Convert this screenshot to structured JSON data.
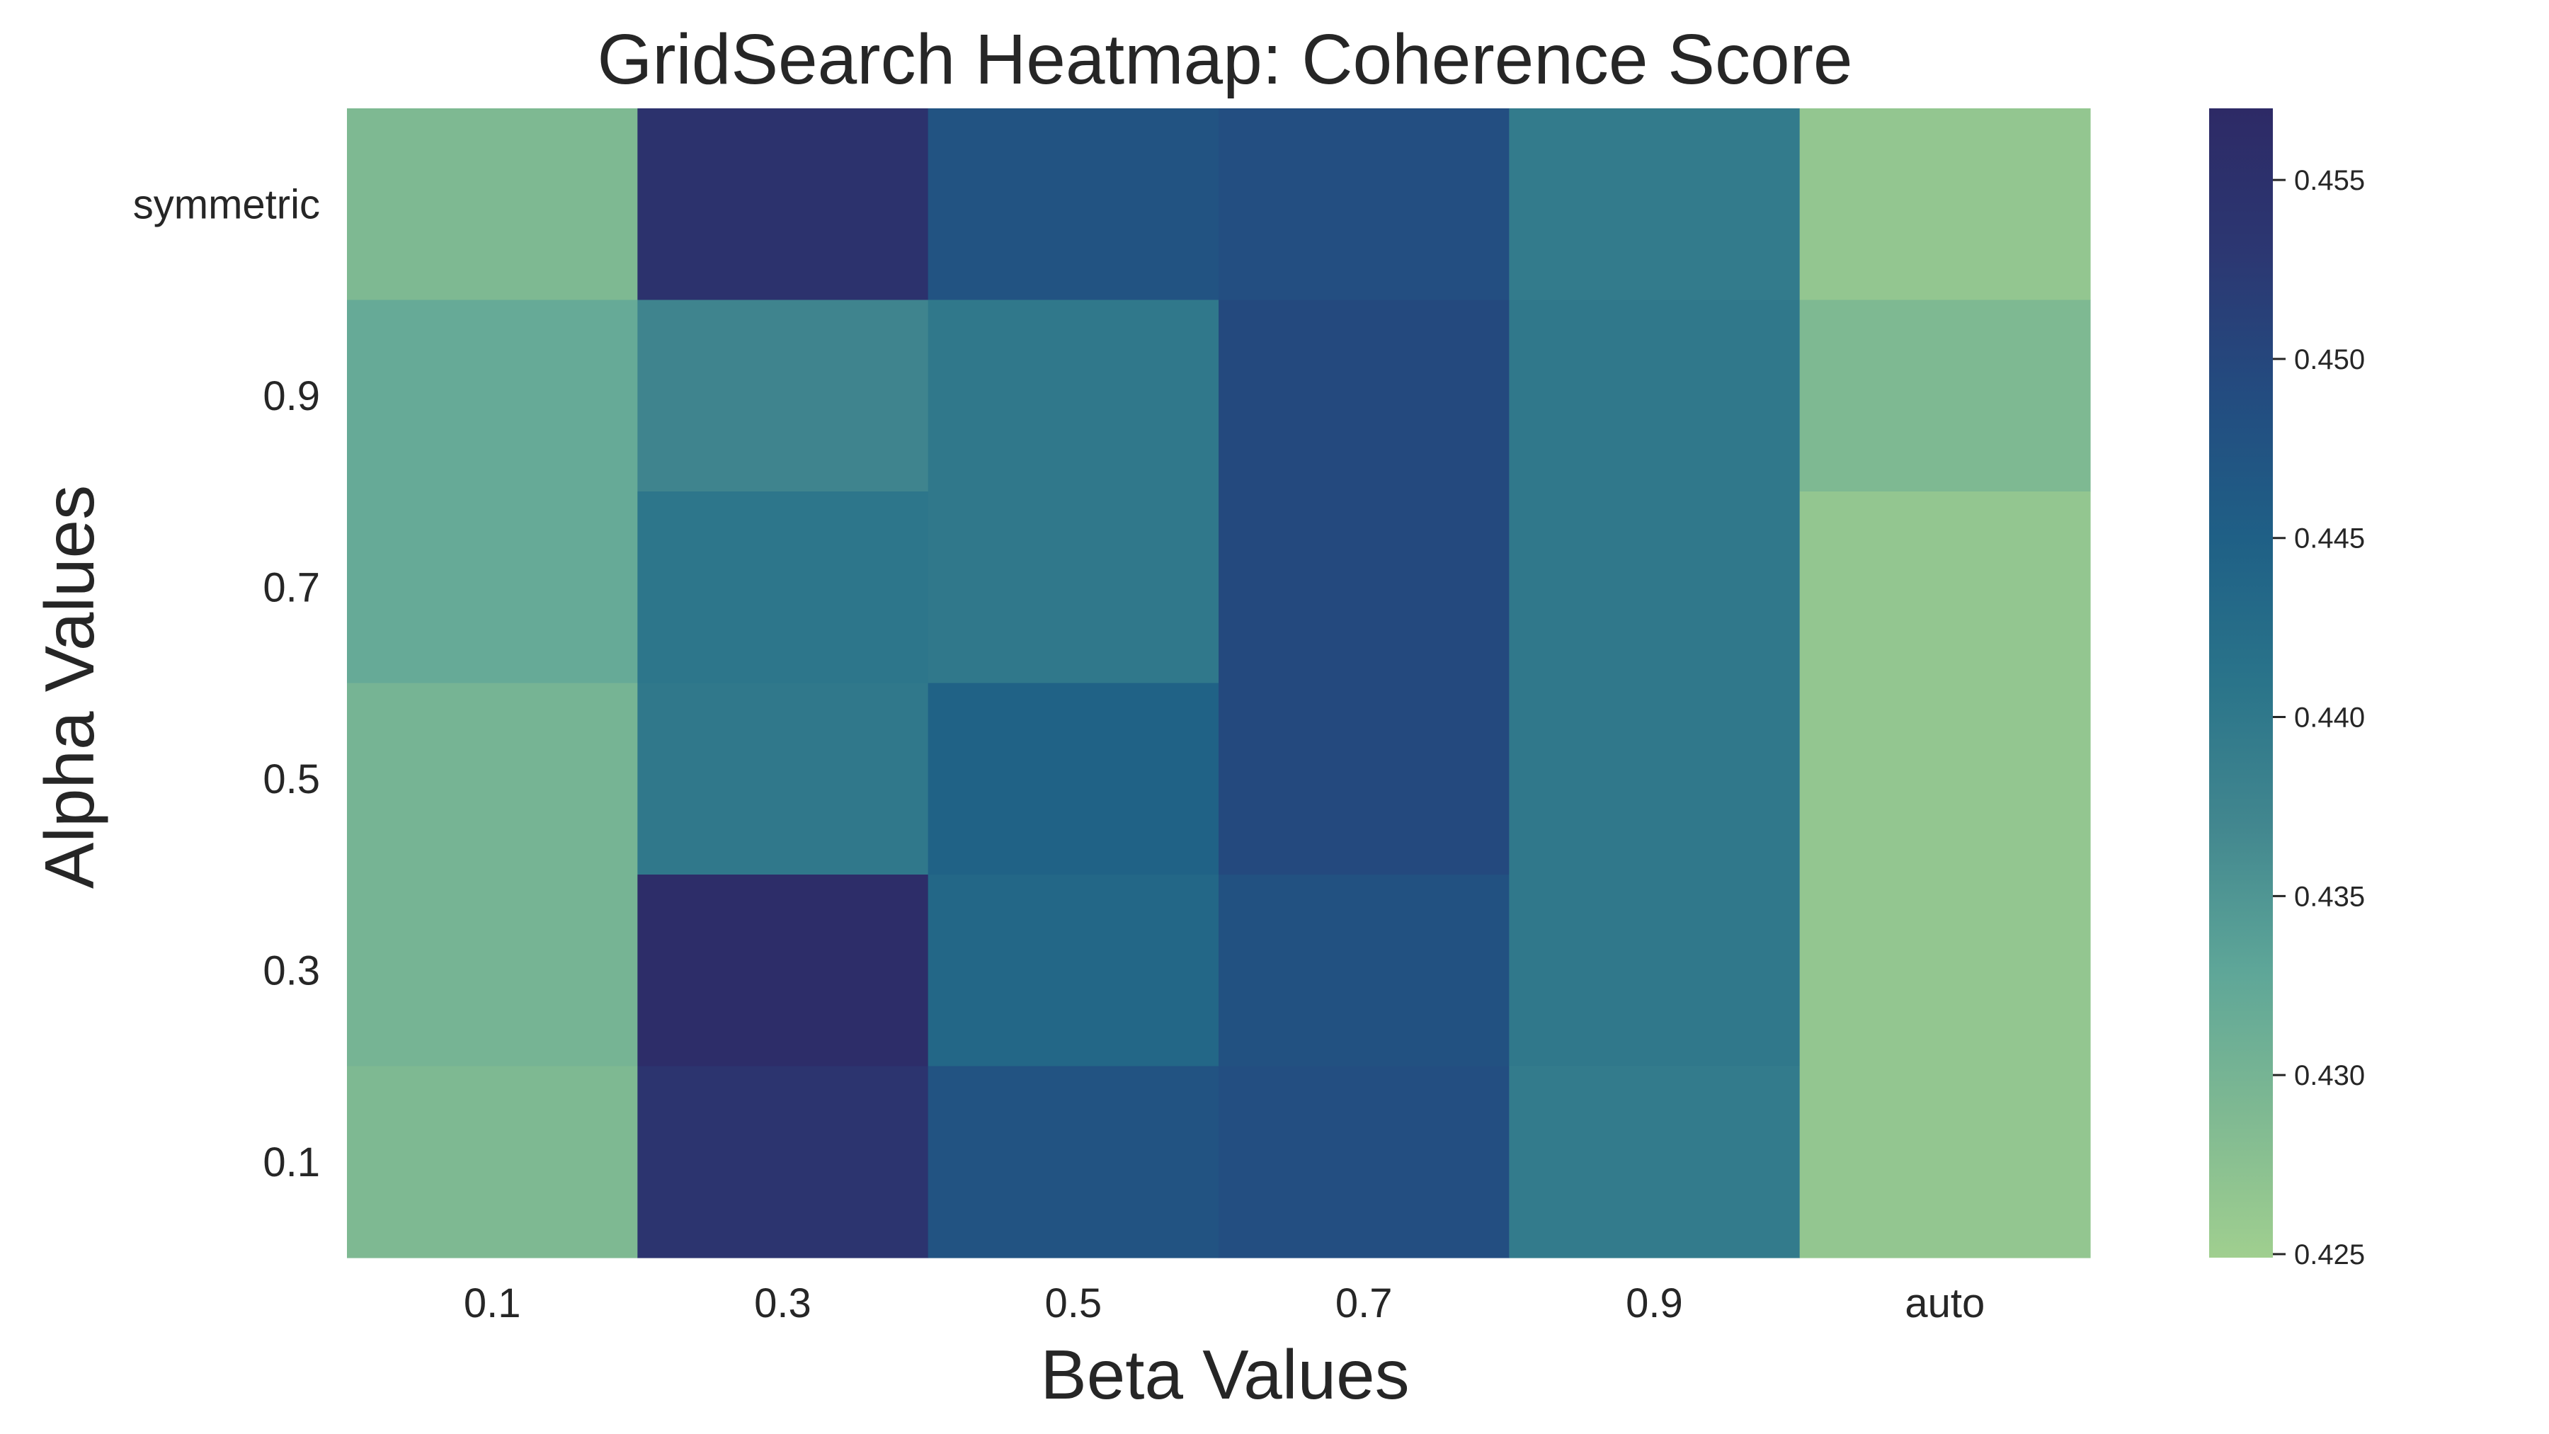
{
  "chart_data": {
    "type": "heatmap",
    "title": "GridSearch Heatmap: Coherence Score",
    "xlabel": "Beta Values",
    "ylabel": "Alpha Values",
    "x_categories": [
      "0.1",
      "0.3",
      "0.5",
      "0.7",
      "0.9",
      "auto"
    ],
    "y_categories": [
      "symmetric",
      "0.9",
      "0.7",
      "0.5",
      "0.3",
      "0.1"
    ],
    "values": [
      [
        0.429,
        0.4545,
        0.4475,
        0.4485,
        0.4395,
        0.4265
      ],
      [
        0.432,
        0.4375,
        0.44,
        0.4495,
        0.44,
        0.429
      ],
      [
        0.432,
        0.4405,
        0.44,
        0.4495,
        0.44,
        0.4265
      ],
      [
        0.43,
        0.44,
        0.4445,
        0.4495,
        0.44,
        0.4265
      ],
      [
        0.43,
        0.456,
        0.4435,
        0.448,
        0.44,
        0.4265
      ],
      [
        0.429,
        0.454,
        0.4475,
        0.4485,
        0.4395,
        0.4265
      ]
    ],
    "colorbar": {
      "vmin": 0.4249,
      "vmax": 0.457,
      "ticks": [
        "0.425",
        "0.430",
        "0.435",
        "0.440",
        "0.445",
        "0.450",
        "0.455"
      ],
      "colormap": [
        "#a0cf8f",
        "#7fb992",
        "#5ea698",
        "#42878f",
        "#2a748a",
        "#1f6086",
        "#234c80",
        "#2c3772",
        "#2d2a66"
      ]
    },
    "grid": false,
    "legend": "colorbar-right"
  }
}
